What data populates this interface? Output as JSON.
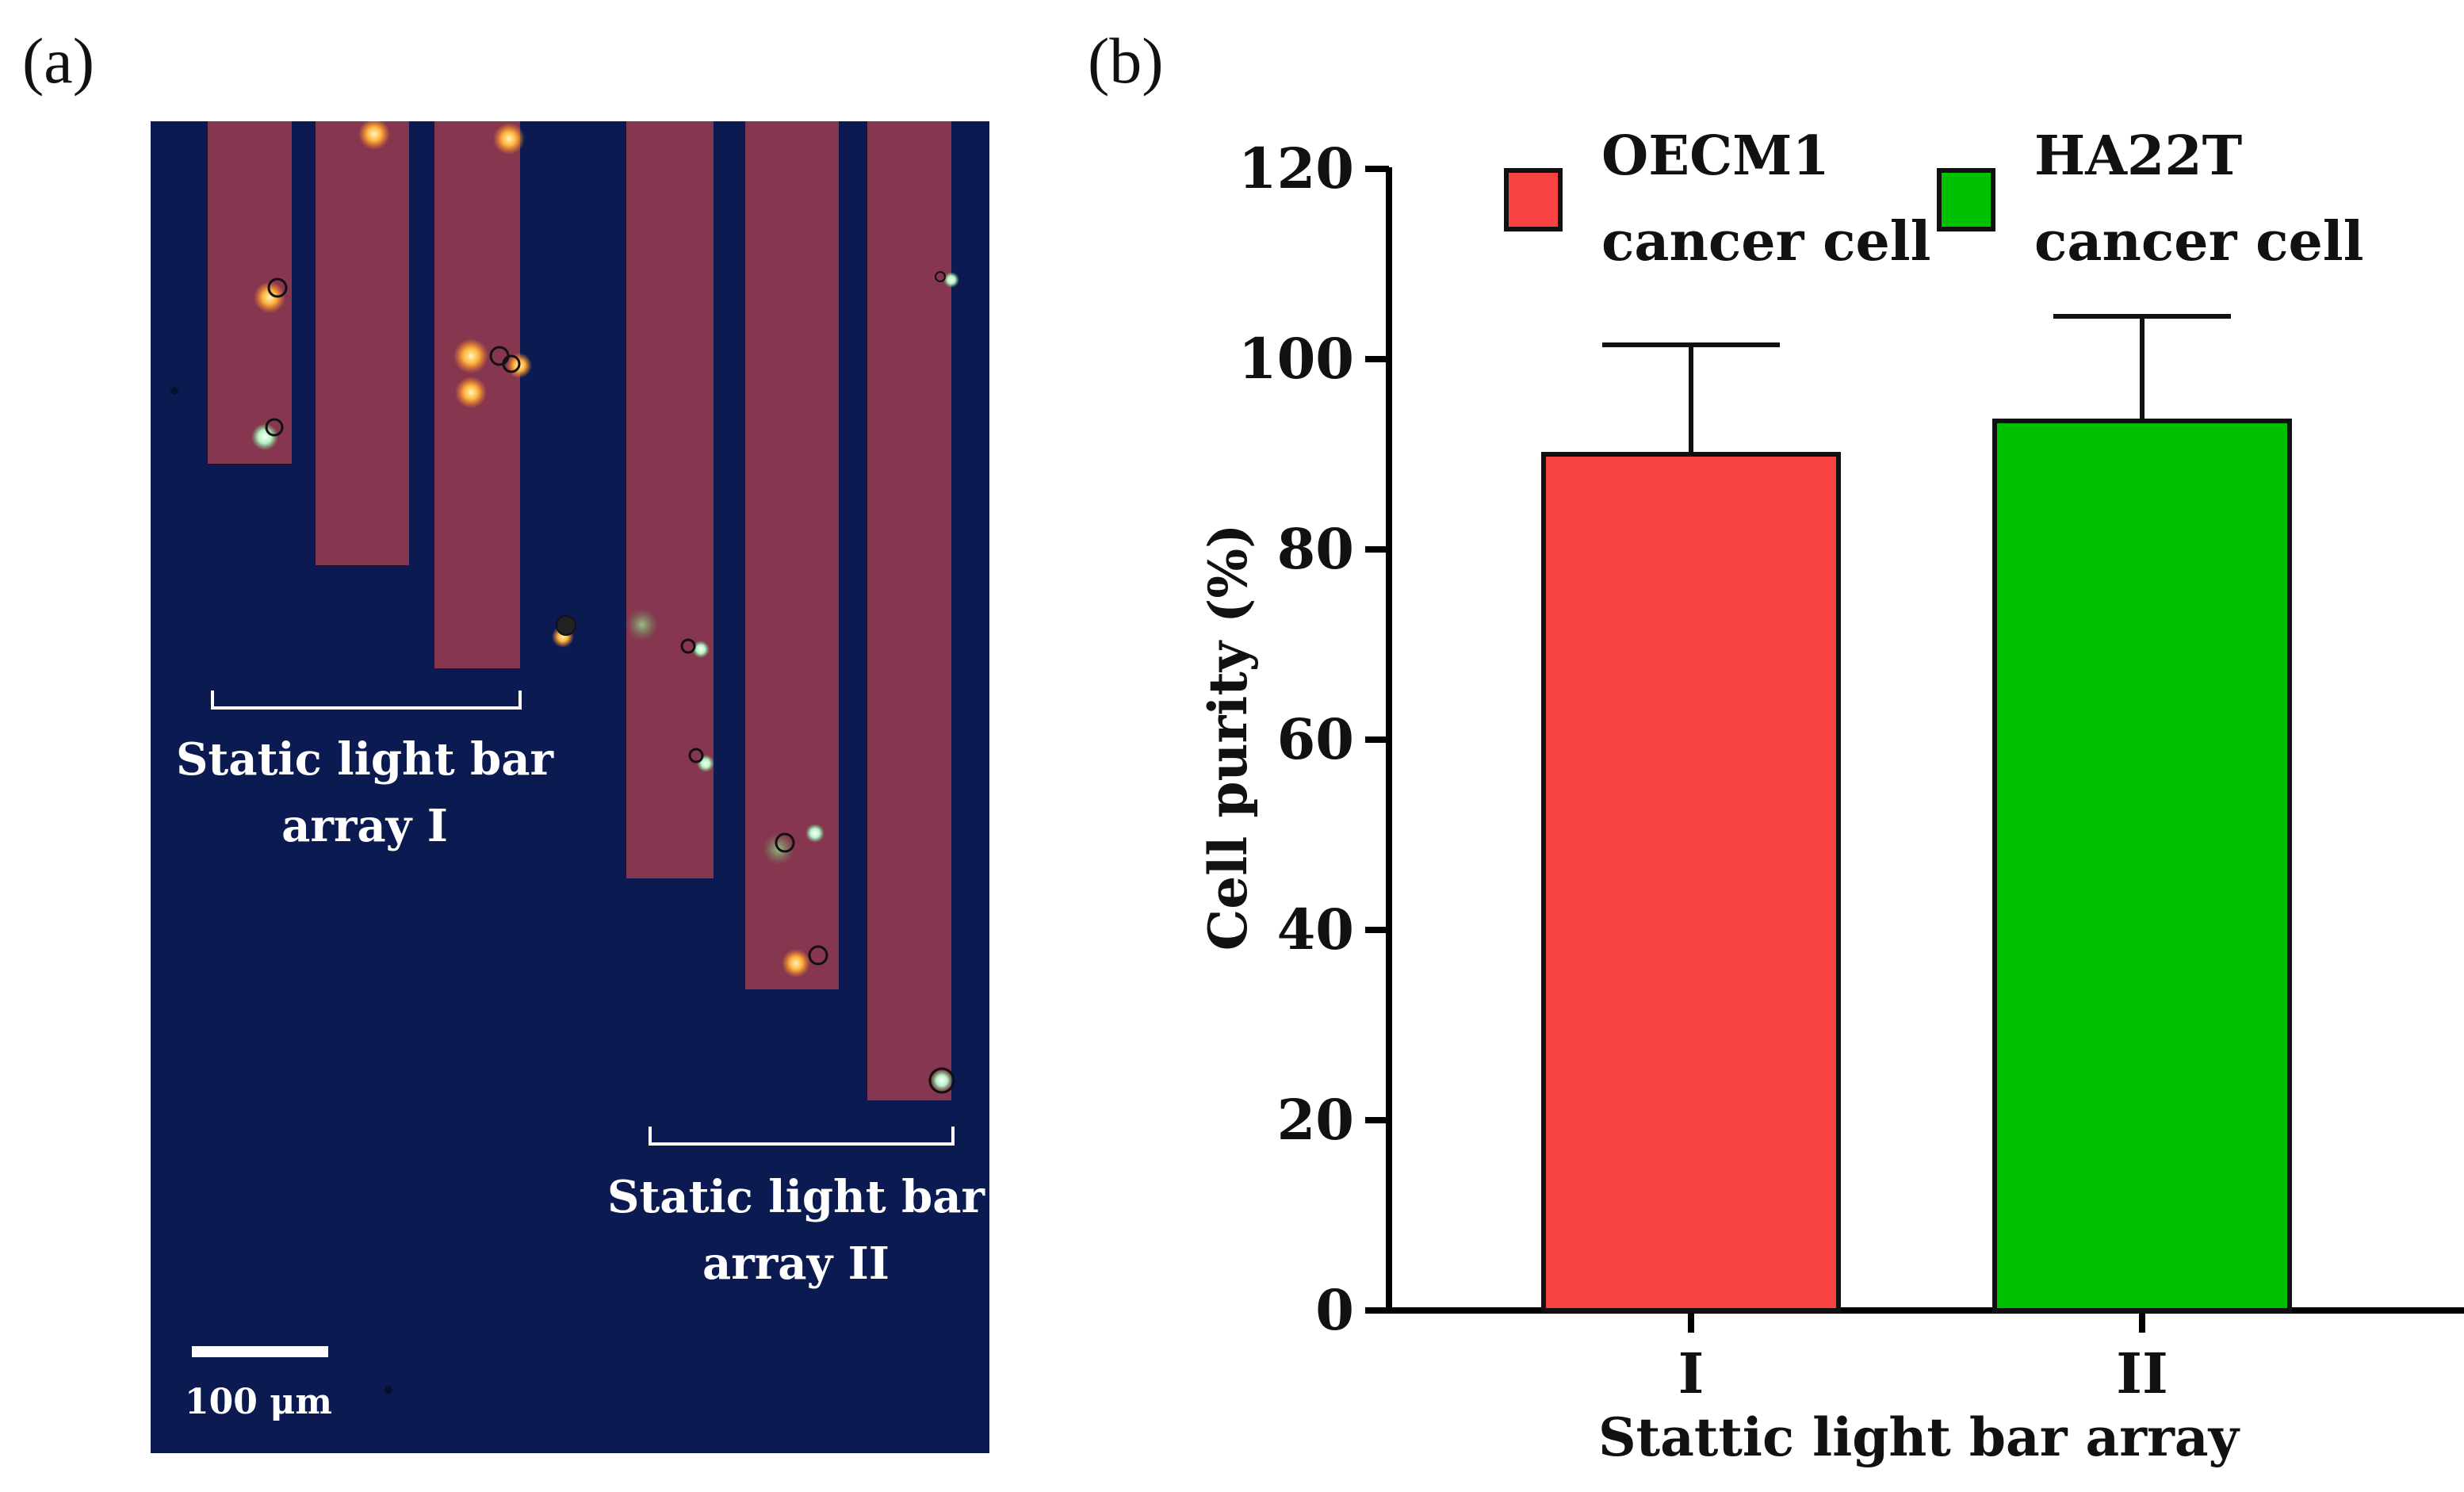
{
  "panel_labels": {
    "a": "(a)",
    "b": "(b)"
  },
  "micrograph": {
    "annotation_1": [
      "Static light bar",
      "array I"
    ],
    "annotation_2": [
      "Static light bar",
      "array II"
    ],
    "scale_bar_label": "100 μm",
    "colors": {
      "background": "#0c1a52",
      "light_bar": "#86364f",
      "cell_orange": "#ffb23a",
      "cell_green": "#b4f2c2"
    }
  },
  "chart_data": {
    "type": "bar",
    "title": "",
    "xlabel": "Stattic light bar array",
    "ylabel": "Cell purity (%)",
    "categories": [
      "I",
      "II"
    ],
    "values": [
      90,
      93.5
    ],
    "errors": [
      11.5,
      11
    ],
    "series_names": [
      "OECM1\ncancer cell",
      "HA22T\ncancer cell"
    ],
    "legend": [
      {
        "line1": "OECM1",
        "line2": "cancer cell",
        "color": "#f94343"
      },
      {
        "line1": "HA22T",
        "line2": "cancer cell",
        "color": "#00c000"
      }
    ],
    "ylim": [
      0,
      120
    ],
    "yticks": [
      0,
      20,
      40,
      60,
      80,
      100,
      120
    ],
    "legend_position": "top",
    "grid": false
  }
}
